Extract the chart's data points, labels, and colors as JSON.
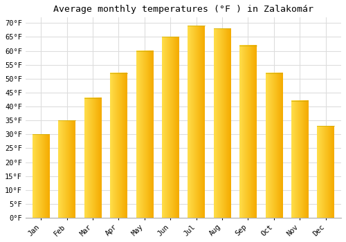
{
  "title_display": "Average monthly temperatures (°F ) in Zalakomár",
  "months": [
    "Jan",
    "Feb",
    "Mar",
    "Apr",
    "May",
    "Jun",
    "Jul",
    "Aug",
    "Sep",
    "Oct",
    "Nov",
    "Dec"
  ],
  "values": [
    30,
    35,
    43,
    52,
    60,
    65,
    69,
    68,
    62,
    52,
    42,
    33
  ],
  "bar_color_left": "#FFD44A",
  "bar_color_right": "#F5A800",
  "background_color": "#FFFFFF",
  "grid_color": "#DDDDDD",
  "ylim": [
    0,
    72
  ],
  "yticks": [
    0,
    5,
    10,
    15,
    20,
    25,
    30,
    35,
    40,
    45,
    50,
    55,
    60,
    65,
    70
  ],
  "ytick_labels": [
    "0°F",
    "5°F",
    "10°F",
    "15°F",
    "20°F",
    "25°F",
    "30°F",
    "35°F",
    "40°F",
    "45°F",
    "50°F",
    "55°F",
    "60°F",
    "65°F",
    "70°F"
  ],
  "tick_fontsize": 7.5,
  "title_fontsize": 9.5,
  "font_family": "monospace",
  "bar_width": 0.65,
  "gradient_steps": 50
}
